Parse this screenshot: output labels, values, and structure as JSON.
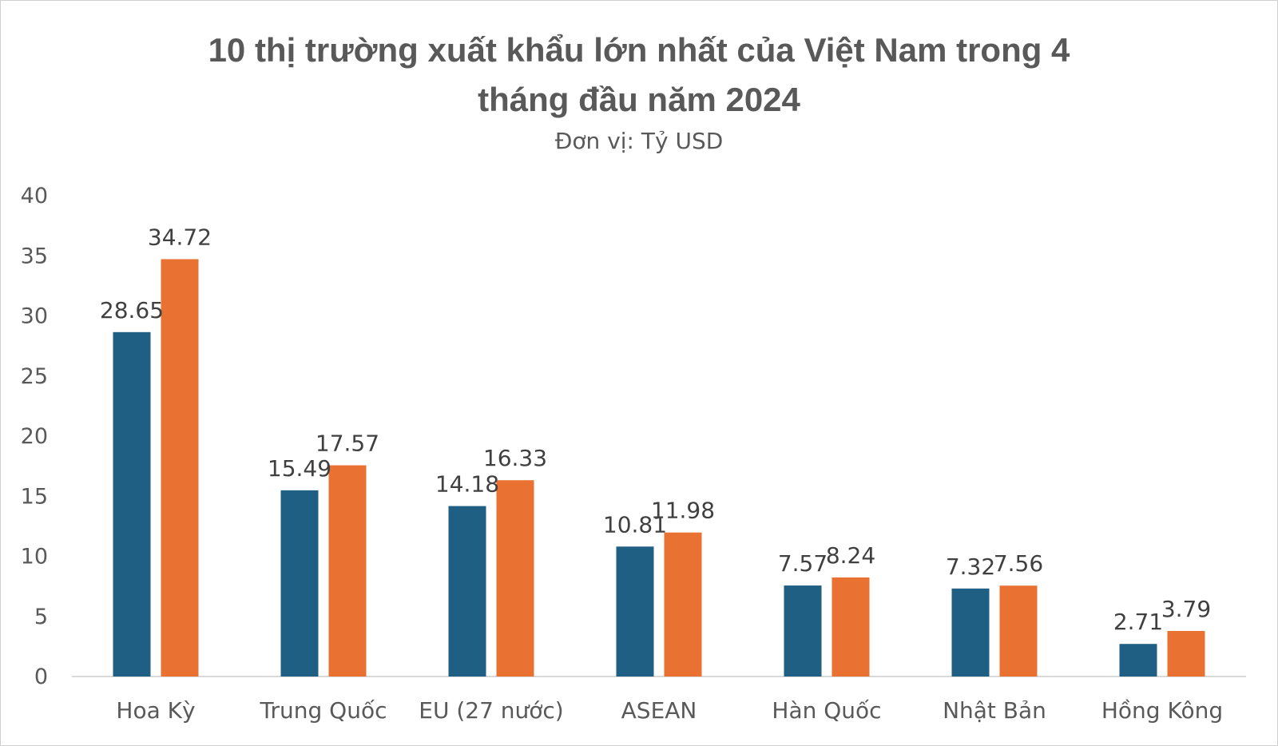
{
  "chart_data": {
    "type": "bar",
    "title_lines": [
      "10 thị trường xuất khẩu lớn nhất của Việt Nam trong 4",
      "tháng đầu năm 2024"
    ],
    "subtitle": "Đơn vị: Tỷ USD",
    "categories": [
      "Hoa Kỳ",
      "Trung Quốc",
      "EU (27 nước)",
      "ASEAN",
      "Hàn Quốc",
      "Nhật Bản",
      "Hồng Kông"
    ],
    "series": [
      {
        "values": [
          28.65,
          15.49,
          14.18,
          10.81,
          7.57,
          7.32,
          2.71
        ],
        "color": "#1f5f84"
      },
      {
        "values": [
          34.72,
          17.57,
          16.33,
          11.98,
          8.24,
          7.56,
          3.79
        ],
        "color": "#e97132"
      }
    ],
    "ylim": [
      0,
      40
    ],
    "yticks": [
      0,
      5,
      10,
      15,
      20,
      25,
      30,
      35,
      40
    ],
    "grid": false,
    "legend": "none",
    "data_labels": true
  }
}
